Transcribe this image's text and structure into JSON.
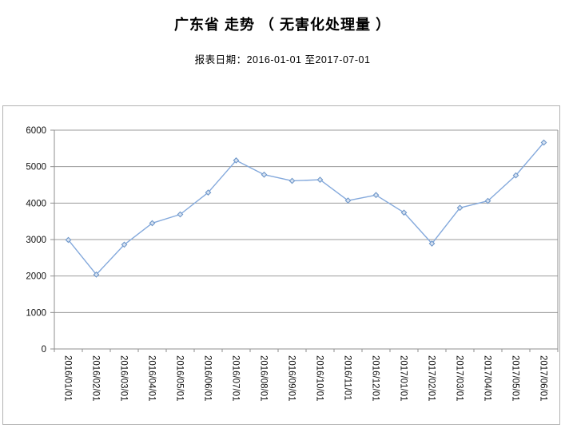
{
  "page": {
    "title": "广东省 走势 （ 无害化处理量 ）",
    "subtitle": "报表日期：2016-01-01 至2017-07-01"
  },
  "chart_data": {
    "type": "line",
    "title": "广东省 走势 （ 无害化处理量 ）",
    "subtitle": "报表日期：2016-01-01 至2017-07-01",
    "categories": [
      "2016/01/01",
      "2016/02/01",
      "2016/03/01",
      "2016/04/01",
      "2016/05/01",
      "2016/06/01",
      "2016/07/01",
      "2016/08/01",
      "2016/09/01",
      "2016/10/01",
      "2016/11/01",
      "2016/12/01",
      "2017/01/01",
      "2017/02/01",
      "2017/03/01",
      "2017/04/01",
      "2017/05/01",
      "2017/06/01"
    ],
    "series": [
      {
        "name": "无害化处理量",
        "values": [
          2990,
          2040,
          2860,
          3450,
          3690,
          4290,
          5170,
          4780,
          4610,
          4640,
          4070,
          4220,
          3740,
          2890,
          3870,
          4060,
          4760,
          5660
        ]
      }
    ],
    "xlabel": "",
    "ylabel": "",
    "ylim": [
      0,
      6000
    ],
    "yticks": [
      0,
      1000,
      2000,
      3000,
      4000,
      5000,
      6000
    ],
    "grid": "horizontal",
    "legend_position": "none",
    "x_label_rotation_deg": 90,
    "marker": "diamond",
    "colors": {
      "line": "#84a9dc",
      "marker_stroke": "#6f97c9",
      "marker_fill": "#d9e4f3",
      "gridline": "#9b9b9b",
      "axis": "#8f8f8f",
      "tick_label": "#111111",
      "frame_border": "#b3b3b3"
    }
  }
}
